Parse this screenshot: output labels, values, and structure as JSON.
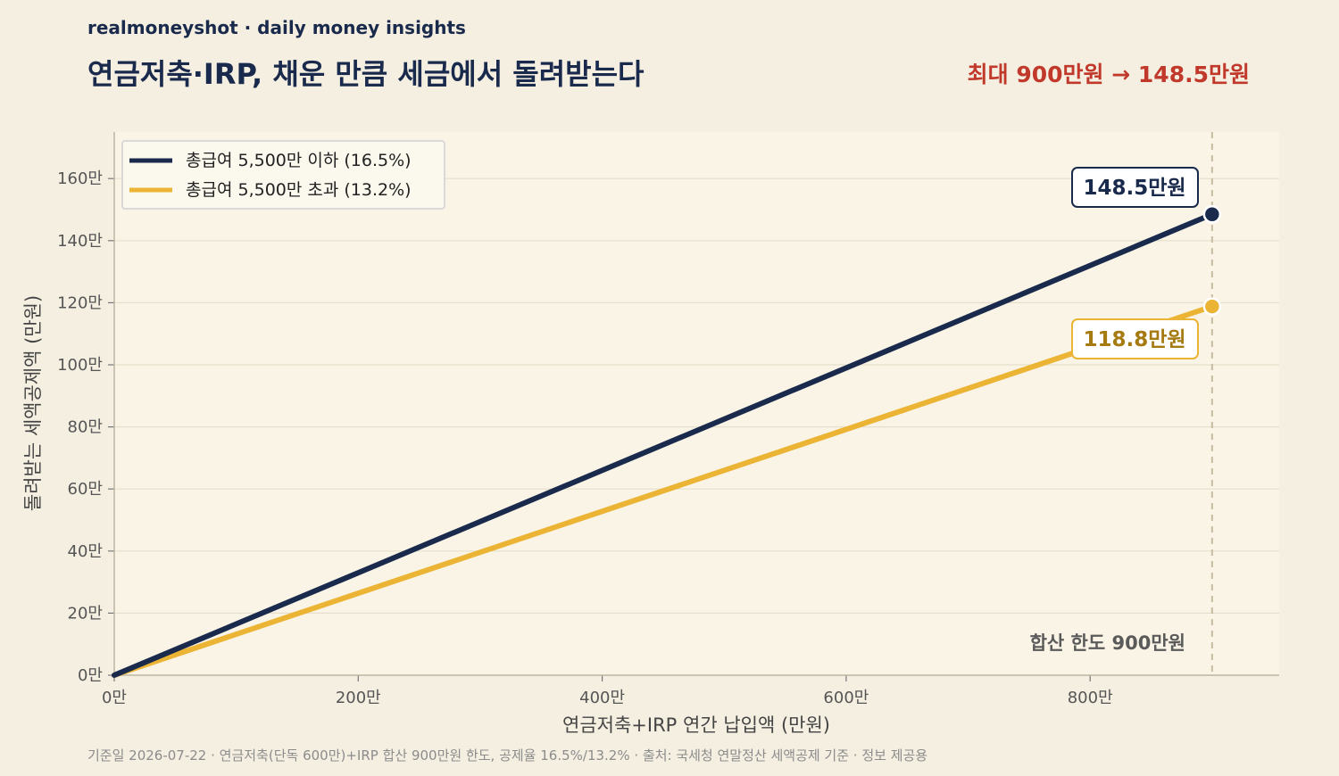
{
  "header": {
    "brand": "realmoneyshot · daily money insights",
    "title": "연금저축·IRP, 채운 만큼 세금에서 돌려받는다",
    "headline": "최대 900만원 → 148.5만원"
  },
  "footer": {
    "note": "기준일 2026-07-22 · 연금저축(단독 600만)+IRP 합산 900만원 한도, 공제율 16.5%/13.2% · 출처: 국세청 연말정산 세액공제 기준 · 정보 제공용"
  },
  "chart_data": {
    "type": "line",
    "xlabel": "연금저축+IRP 연간 납입액 (만원)",
    "ylabel": "돌려받는 세액공제액 (만원)",
    "xlim": [
      0,
      955
    ],
    "ylim": [
      0,
      175
    ],
    "xticks": [
      0,
      200,
      400,
      600,
      800
    ],
    "xtick_labels": [
      "0만",
      "200만",
      "400만",
      "600만",
      "800만"
    ],
    "yticks": [
      0,
      20,
      40,
      60,
      80,
      100,
      120,
      140,
      160
    ],
    "ytick_labels": [
      "0만",
      "20만",
      "40만",
      "60만",
      "80만",
      "100만",
      "120만",
      "140만",
      "160만"
    ],
    "grid": "horizontal",
    "legend_position": "top-left",
    "series": [
      {
        "name": "총급여 5,500만 이하 (16.5%)",
        "color": "#1a2a4c",
        "x": [
          0,
          900
        ],
        "y": [
          0,
          148.5
        ],
        "end_label": "148.5만원"
      },
      {
        "name": "총급여 5,500만 초과 (13.2%)",
        "color": "#ebb434",
        "x": [
          0,
          900
        ],
        "y": [
          0,
          118.8
        ],
        "end_label": "118.8만원"
      }
    ],
    "reference_line": {
      "x": 900,
      "label": "합산 한도 900만원"
    }
  }
}
